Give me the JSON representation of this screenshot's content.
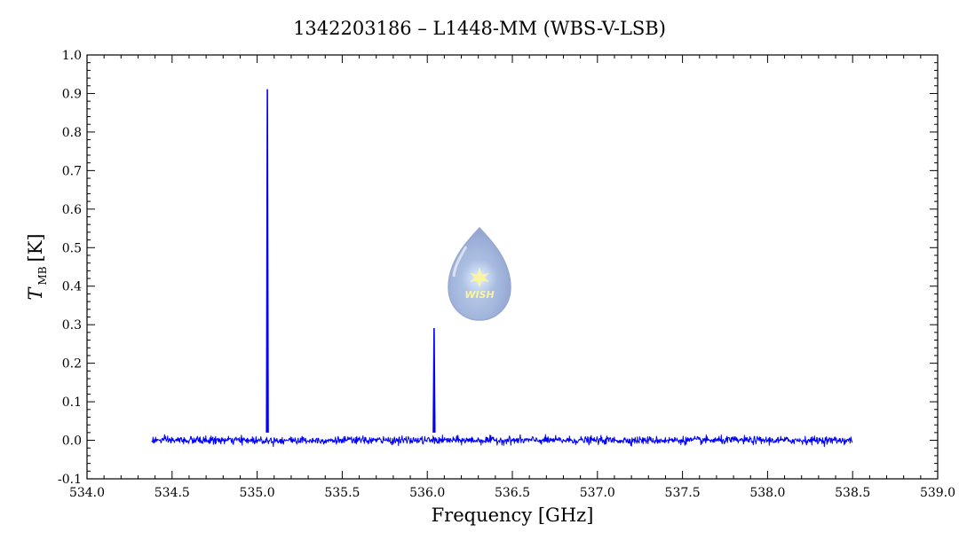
{
  "chart_data": {
    "type": "line",
    "title": "1342203186 – L1448-MM (WBS-V-LSB)",
    "xlabel": "Frequency [GHz]",
    "ylabel": {
      "symbol": "T",
      "subscript": "MB",
      "unit": "[K]"
    },
    "xlim": [
      534.0,
      539.0
    ],
    "ylim": [
      -0.1,
      1.0
    ],
    "x_ticks": [
      "534.0",
      "534.5",
      "535.0",
      "535.5",
      "536.0",
      "536.5",
      "537.0",
      "537.5",
      "538.0",
      "538.5",
      "539.0"
    ],
    "y_ticks": [
      "-0.1",
      "0.0",
      "0.1",
      "0.2",
      "0.3",
      "0.4",
      "0.5",
      "0.6",
      "0.7",
      "0.8",
      "0.9",
      "1.0"
    ],
    "grid": false,
    "series": [
      {
        "color": "#0000ff",
        "x_range": [
          534.38,
          538.5
        ],
        "baseline": 0.0,
        "noise_rms": 0.005,
        "peaks": [
          {
            "x": 535.06,
            "y": 0.91
          },
          {
            "x": 536.04,
            "y": 0.29
          }
        ]
      }
    ],
    "watermark": {
      "text": "WISH"
    }
  }
}
